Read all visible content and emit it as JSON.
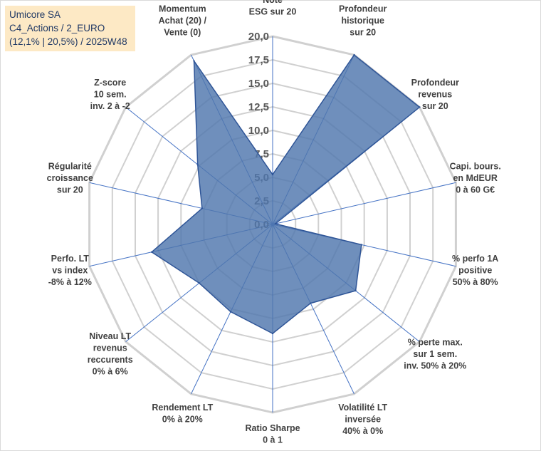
{
  "title": {
    "line1": "Umicore SA",
    "line2": "C4_Actions / 2_EURO",
    "line3": "(12,1% | 20,5%) / 2025W48"
  },
  "chart_data": {
    "type": "radar",
    "title": "Umicore SA",
    "rmin": 0,
    "rmax": 20,
    "ticks": [
      "0,0",
      "2,5",
      "5,0",
      "7,5",
      "10,0",
      "12,5",
      "15,0",
      "17,5",
      "20,0"
    ],
    "tick_values": [
      0,
      2.5,
      5,
      7.5,
      10,
      12.5,
      15,
      17.5,
      20
    ],
    "axes": [
      {
        "label": [
          "Note",
          "ESG sur 20"
        ]
      },
      {
        "label": [
          "Profondeur",
          "historique",
          "sur 20"
        ]
      },
      {
        "label": [
          "Profondeur",
          "revenus",
          "sur 20"
        ]
      },
      {
        "label": [
          "Capi. bours.",
          "en MdEUR",
          "0 à 60 G€"
        ]
      },
      {
        "label": [
          "% perfo 1A",
          "positive",
          "50% à 80%"
        ]
      },
      {
        "label": [
          "% perte max.",
          "sur 1 sem.",
          "inv. 50% à 20%"
        ]
      },
      {
        "label": [
          "Volatilité LT",
          "inversée",
          "40% à 0%"
        ]
      },
      {
        "label": [
          "Ratio Sharpe",
          "0 à 1"
        ]
      },
      {
        "label": [
          "Rendement LT",
          "0% à 20%"
        ]
      },
      {
        "label": [
          "Niveau LT",
          "revenus",
          "reccurents",
          "0% à 6%"
        ]
      },
      {
        "label": [
          "Perfo. LT",
          "vs index",
          "-8% à 12%"
        ]
      },
      {
        "label": [
          "Régularité",
          "croissance",
          "sur 20"
        ]
      },
      {
        "label": [
          "Z-score",
          "10 sem.",
          "inv. 2 à -2"
        ]
      },
      {
        "label": [
          "Momentum",
          "Achat (20) /",
          "Vente (0)"
        ]
      }
    ],
    "series": [
      {
        "name": "Umicore SA",
        "color": "#4f76ad",
        "values": [
          5.3,
          20.0,
          20.0,
          0.3,
          9.7,
          11.3,
          9.3,
          11.6,
          10.3,
          10.0,
          13.2,
          7.7,
          10.2,
          19.3
        ]
      }
    ]
  }
}
